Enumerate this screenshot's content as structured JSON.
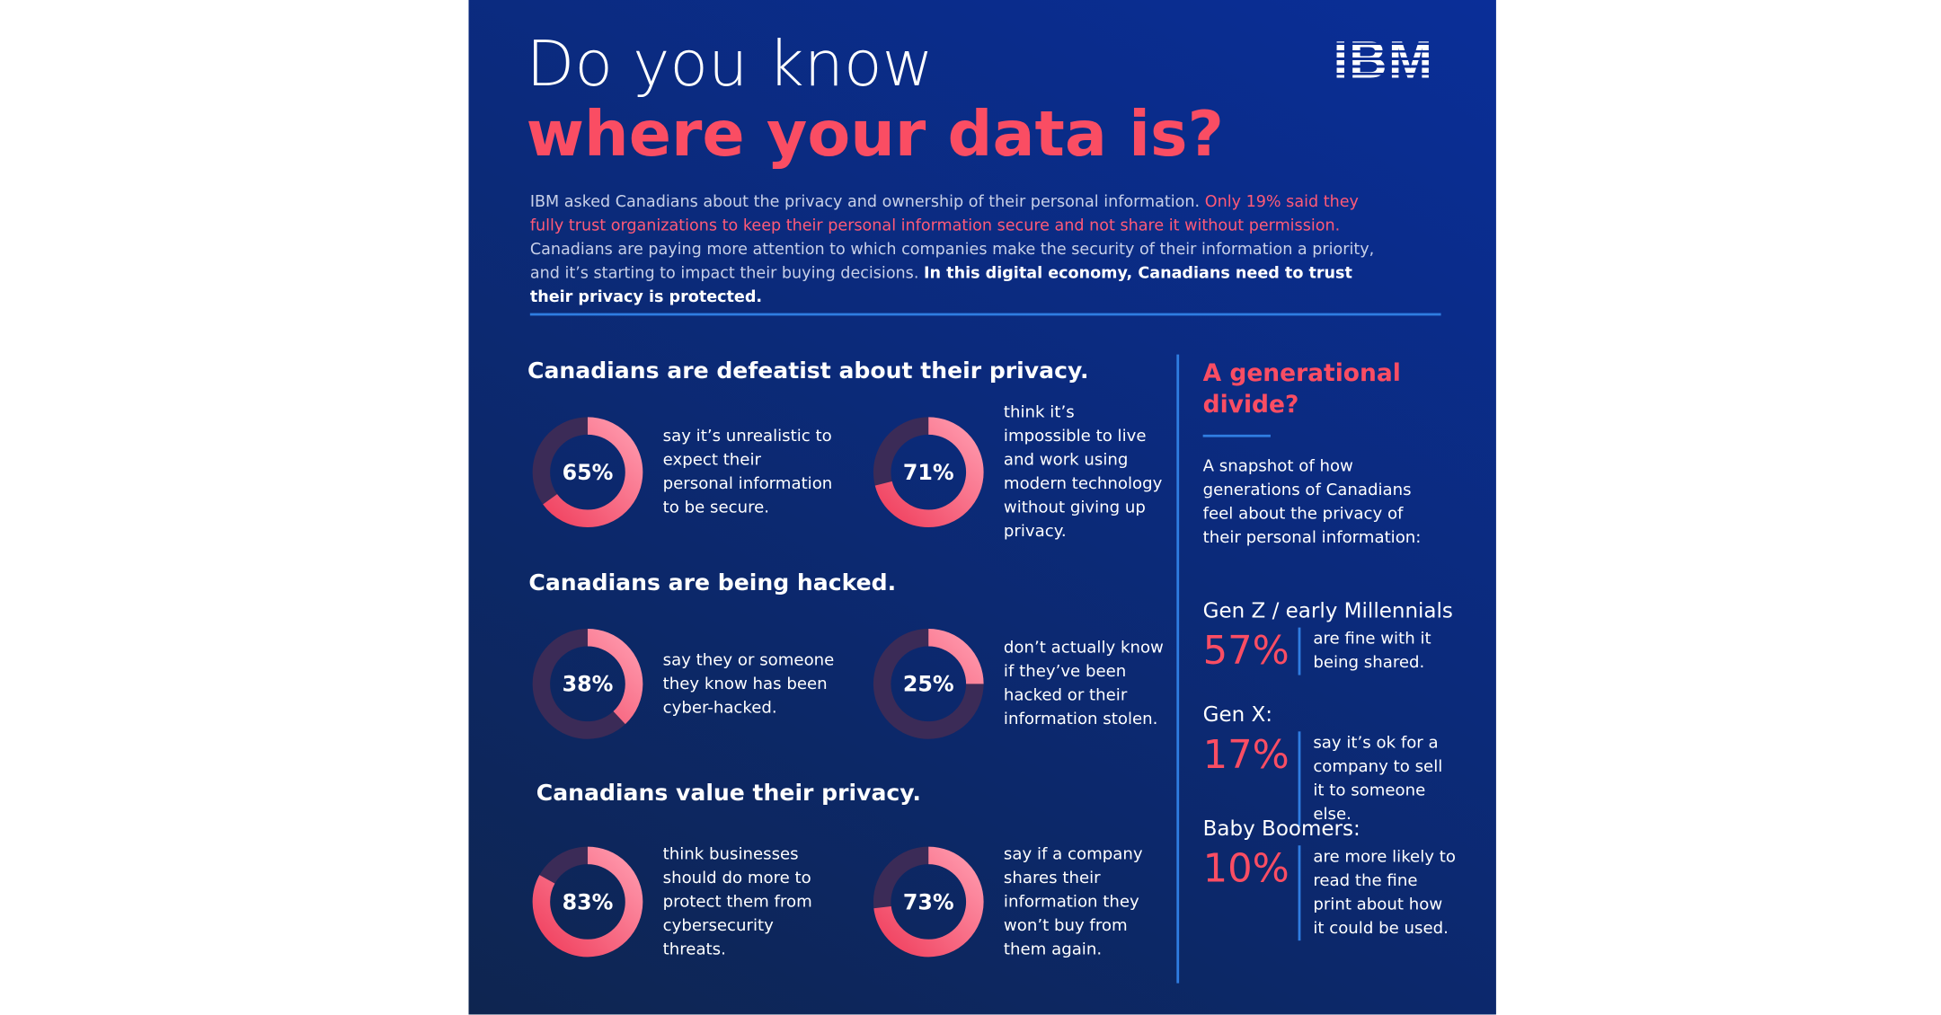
{
  "header": {
    "title_line1": "Do you know",
    "title_line2": "where your data is?",
    "logo": "IBM"
  },
  "intro": {
    "plain1": "IBM asked Canadians about the privacy and ownership of their personal information.",
    "highlight": "Only 19% said they fully trust organizations to keep their personal information secure and not share it without permission.",
    "plain2": "Canadians are paying more attention to which companies make the security of their information a priority, and it’s starting to impact their buying decisions.",
    "bold": "In this digital economy, Canadians need to trust their privacy is protected."
  },
  "sections": [
    {
      "heading": "Canadians are defeatist about their privacy.",
      "stats": [
        {
          "value": 65,
          "label": "65%",
          "text": "say it’s unrealistic to expect their personal information to be secure."
        },
        {
          "value": 71,
          "label": "71%",
          "text": "think it’s impossible to live and work using modern technology without giving up privacy."
        }
      ]
    },
    {
      "heading": "Canadians are being hacked.",
      "stats": [
        {
          "value": 38,
          "label": "38%",
          "text": "say they or someone they know has been cyber-hacked."
        },
        {
          "value": 25,
          "label": "25%",
          "text": "don’t actually know if they’ve been hacked or their information stolen."
        }
      ]
    },
    {
      "heading": "Canadians value their privacy.",
      "stats": [
        {
          "value": 83,
          "label": "83%",
          "text": "think businesses should do more to protect them from cybersecurity threats."
        },
        {
          "value": 73,
          "label": "73%",
          "text": "say if a company shares their information they won’t buy from them again."
        }
      ]
    }
  ],
  "sidebar": {
    "heading": "A generational divide?",
    "description": "A snapshot of how generations of Canadians feel about the privacy of their personal information:",
    "groups": [
      {
        "name": "Gen Z / early Millennials",
        "label": "57%",
        "text": "are fine with it being shared."
      },
      {
        "name": "Gen X:",
        "label": "17%",
        "text": "say it’s ok for a company to sell it to someone else."
      },
      {
        "name": "Baby Boomers:",
        "label": "10%",
        "text": "are more likely to read the fine print about how it could be used."
      }
    ]
  }
}
